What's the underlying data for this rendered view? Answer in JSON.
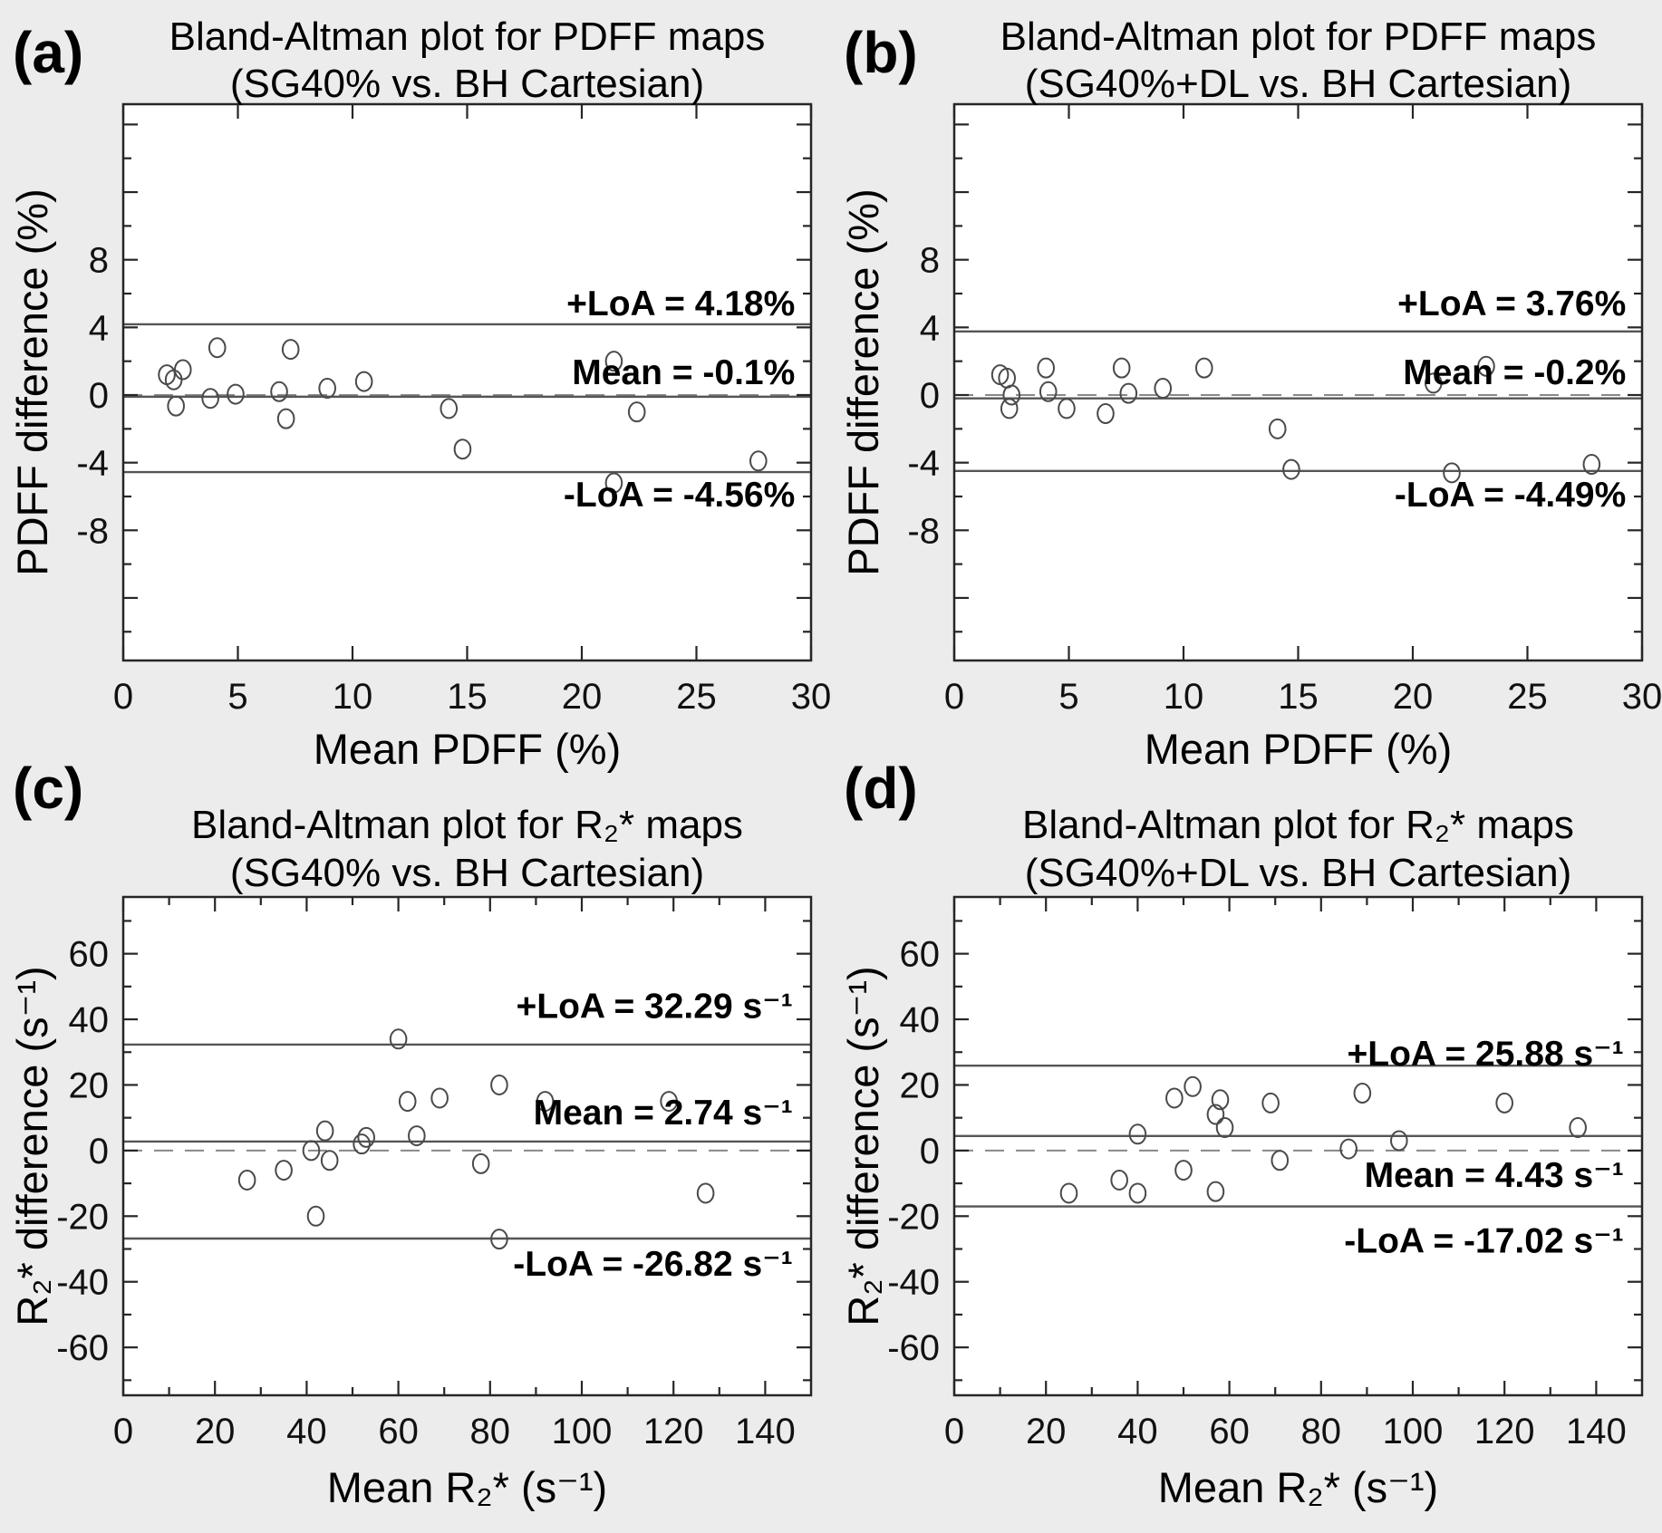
{
  "figure": {
    "background": "#ececec",
    "plot_background": "#ffffff",
    "axis_color": "#262626",
    "solid_line_color": "#555555",
    "dashed_line_color": "#888888",
    "marker_color": "#4a4a4a"
  },
  "chart_data": [
    {
      "id": "a",
      "type": "scatter",
      "corner_label": "(a)",
      "title_line1": "Bland-Altman plot for PDFF maps",
      "title_line2": "(SG40% vs. BH Cartesian)",
      "xlabel": "Mean PDFF (%)",
      "ylabel": "PDFF difference (%)",
      "xlim": [
        0,
        30
      ],
      "ylim": [
        -15.7,
        17.2
      ],
      "x_major_ticks": [
        0,
        5,
        10,
        15,
        20,
        25,
        30
      ],
      "x_minor_step": 0,
      "y_major_step": 4,
      "y_minor_step": 2,
      "y_labeled_ticks": [
        -8,
        -4,
        0,
        4,
        8
      ],
      "zero_line": 0,
      "mean": -0.1,
      "upper_loa": 4.18,
      "lower_loa": -4.56,
      "annotations": {
        "right_x": 29.3,
        "upper": {
          "label": "+LoA = 4.18%",
          "y": 5.4
        },
        "mean": {
          "label": "Mean = -0.1%",
          "y": 1.35
        },
        "lower": {
          "label": "-LoA = -4.56%",
          "y": -5.9
        }
      },
      "points": [
        [
          1.9,
          1.2
        ],
        [
          2.2,
          0.9
        ],
        [
          2.6,
          1.5
        ],
        [
          2.3,
          -0.65
        ],
        [
          3.8,
          -0.2
        ],
        [
          4.1,
          2.8
        ],
        [
          4.9,
          0.05
        ],
        [
          6.8,
          0.2
        ],
        [
          7.3,
          2.7
        ],
        [
          7.1,
          -1.4
        ],
        [
          8.9,
          0.4
        ],
        [
          10.5,
          0.8
        ],
        [
          14.2,
          -0.8
        ],
        [
          14.8,
          -3.2
        ],
        [
          21.4,
          2.0
        ],
        [
          22.4,
          -1.0
        ],
        [
          21.4,
          -5.2
        ],
        [
          27.7,
          -3.9
        ]
      ]
    },
    {
      "id": "b",
      "type": "scatter",
      "corner_label": "(b)",
      "title_line1": "Bland-Altman plot for PDFF maps",
      "title_line2": "(SG40%+DL vs. BH Cartesian)",
      "xlabel": "Mean PDFF (%)",
      "ylabel": "PDFF difference (%)",
      "xlim": [
        0,
        30
      ],
      "ylim": [
        -15.7,
        17.2
      ],
      "x_major_ticks": [
        0,
        5,
        10,
        15,
        20,
        25,
        30
      ],
      "x_minor_step": 0,
      "y_major_step": 4,
      "y_minor_step": 2,
      "y_labeled_ticks": [
        -8,
        -4,
        0,
        4,
        8
      ],
      "zero_line": 0,
      "mean": -0.2,
      "upper_loa": 3.76,
      "lower_loa": -4.49,
      "annotations": {
        "right_x": 29.3,
        "upper": {
          "label": "+LoA = 3.76%",
          "y": 5.4
        },
        "mean": {
          "label": "Mean = -0.2%",
          "y": 1.35
        },
        "lower": {
          "label": "-LoA = -4.49%",
          "y": -5.9
        }
      },
      "points": [
        [
          2.0,
          1.2
        ],
        [
          2.3,
          1.0
        ],
        [
          2.5,
          0.0
        ],
        [
          2.4,
          -0.8
        ],
        [
          4.0,
          1.6
        ],
        [
          4.1,
          0.2
        ],
        [
          4.9,
          -0.8
        ],
        [
          6.6,
          -1.1
        ],
        [
          7.3,
          1.6
        ],
        [
          7.6,
          0.1
        ],
        [
          9.1,
          0.4
        ],
        [
          10.9,
          1.6
        ],
        [
          14.1,
          -2.0
        ],
        [
          14.7,
          -4.4
        ],
        [
          20.9,
          0.7
        ],
        [
          21.7,
          -4.6
        ],
        [
          23.2,
          1.7
        ],
        [
          27.8,
          -4.1
        ]
      ]
    },
    {
      "id": "c",
      "type": "scatter",
      "corner_label": "(c)",
      "title_line1": "Bland-Altman plot for R₂* maps",
      "title_line2": "(SG40% vs. BH Cartesian)",
      "xlabel": "Mean R₂* (s⁻¹)",
      "ylabel": "R₂* difference (s⁻¹)",
      "xlim": [
        0,
        150
      ],
      "ylim": [
        -74.6,
        77.3
      ],
      "x_major_ticks": [
        0,
        20,
        40,
        60,
        80,
        100,
        120,
        140
      ],
      "x_minor_step": 10,
      "y_major_step": 20,
      "y_minor_step": 10,
      "y_labeled_ticks": [
        -60,
        -40,
        -20,
        0,
        20,
        40,
        60
      ],
      "zero_line": 0,
      "mean": 2.74,
      "upper_loa": 32.29,
      "lower_loa": -26.82,
      "annotations": {
        "right_x": 146,
        "upper": {
          "label": "+LoA = 32.29 s⁻¹",
          "y": 44
        },
        "mean": {
          "label": "Mean = 2.74 s⁻¹",
          "y": 11.5
        },
        "lower": {
          "label": "-LoA = -26.82 s⁻¹",
          "y": -34.5
        }
      },
      "points": [
        [
          27,
          -9
        ],
        [
          35,
          -6
        ],
        [
          41,
          0
        ],
        [
          44,
          6
        ],
        [
          45,
          -3
        ],
        [
          42,
          -20
        ],
        [
          52,
          2
        ],
        [
          53,
          4
        ],
        [
          60,
          34
        ],
        [
          62,
          15
        ],
        [
          64,
          4.5
        ],
        [
          69,
          16
        ],
        [
          78,
          -4
        ],
        [
          82,
          20
        ],
        [
          82,
          -27
        ],
        [
          92,
          15
        ],
        [
          119,
          15
        ],
        [
          127,
          -13
        ]
      ]
    },
    {
      "id": "d",
      "type": "scatter",
      "corner_label": "(d)",
      "title_line1": "Bland-Altman plot for R₂* maps",
      "title_line2": "(SG40%+DL vs. BH Cartesian)",
      "xlabel": "Mean R₂* (s⁻¹)",
      "ylabel": "R₂* difference (s⁻¹)",
      "xlim": [
        0,
        150
      ],
      "ylim": [
        -74.6,
        77.3
      ],
      "x_major_ticks": [
        0,
        20,
        40,
        60,
        80,
        100,
        120,
        140
      ],
      "x_minor_step": 10,
      "y_major_step": 20,
      "y_minor_step": 10,
      "y_labeled_ticks": [
        -60,
        -40,
        -20,
        0,
        20,
        40,
        60
      ],
      "zero_line": 0,
      "mean": 4.43,
      "upper_loa": 25.88,
      "lower_loa": -17.02,
      "annotations": {
        "right_x": 146,
        "upper": {
          "label": "+LoA = 25.88 s⁻¹",
          "y": 29.5
        },
        "mean": {
          "label": "Mean = 4.43 s⁻¹",
          "y": -7.5
        },
        "lower": {
          "label": "-LoA = -17.02 s⁻¹",
          "y": -27.5
        }
      },
      "points": [
        [
          25,
          -13
        ],
        [
          36,
          -9
        ],
        [
          40,
          -13
        ],
        [
          40,
          5
        ],
        [
          48,
          16
        ],
        [
          50,
          -6
        ],
        [
          52,
          19.5
        ],
        [
          57,
          11
        ],
        [
          57,
          -12.5
        ],
        [
          58,
          15.5
        ],
        [
          59,
          7
        ],
        [
          69,
          14.5
        ],
        [
          71,
          -3
        ],
        [
          86,
          0.5
        ],
        [
          89,
          17.5
        ],
        [
          97,
          3
        ],
        [
          120,
          14.5
        ],
        [
          136,
          7
        ]
      ]
    }
  ]
}
